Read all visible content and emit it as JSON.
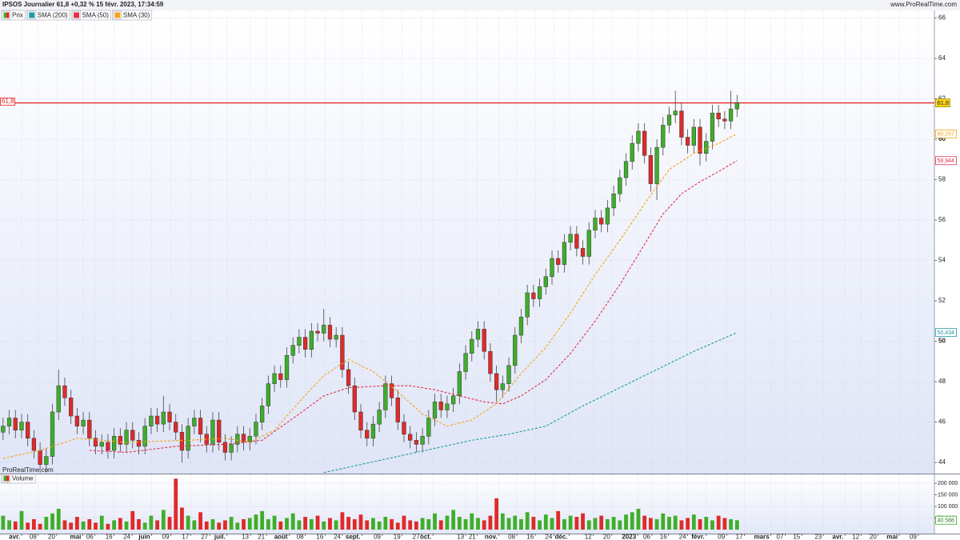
{
  "chart_data": {
    "type": "candlestick",
    "title": "IPSOS Journalier 61,8 +0,32 % 15 févr. 2023, 17:34:59",
    "source": "www.ProRealTime.com",
    "watermark": "ProRealTime.com",
    "price_legend": "Prix",
    "up_color": "#3fae2a",
    "down_color": "#e02a2a",
    "xlim": [
      -0.5,
      151
    ],
    "xticks": [
      {
        "value": 3.0,
        "label": "avr."
      },
      {
        "value": 5.7,
        "label": "08"
      },
      {
        "value": 8.7,
        "label": "20"
      },
      {
        "value": 12.9,
        "label": "mai"
      },
      {
        "value": 14.9,
        "label": "06"
      },
      {
        "value": 18.0,
        "label": "16"
      },
      {
        "value": 20.9,
        "label": "24"
      },
      {
        "value": 24.1,
        "label": "juin"
      },
      {
        "value": 27.2,
        "label": "09"
      },
      {
        "value": 30.4,
        "label": "17"
      },
      {
        "value": 33.5,
        "label": "27"
      },
      {
        "value": 36.3,
        "label": "juil."
      },
      {
        "value": 40.1,
        "label": "13"
      },
      {
        "value": 42.7,
        "label": "21"
      },
      {
        "value": 46.4,
        "label": "août"
      },
      {
        "value": 49.0,
        "label": "08"
      },
      {
        "value": 52.2,
        "label": "16"
      },
      {
        "value": 55.0,
        "label": "24"
      },
      {
        "value": 58.2,
        "label": "sept."
      },
      {
        "value": 61.5,
        "label": "09"
      },
      {
        "value": 64.7,
        "label": "19"
      },
      {
        "value": 67.8,
        "label": "27"
      },
      {
        "value": 69.7,
        "label": "oct."
      },
      {
        "value": 75.0,
        "label": "13"
      },
      {
        "value": 76.9,
        "label": "21"
      },
      {
        "value": 80.4,
        "label": "nov."
      },
      {
        "value": 83.3,
        "label": "08"
      },
      {
        "value": 86.3,
        "label": "16"
      },
      {
        "value": 89.3,
        "label": "24"
      },
      {
        "value": 91.8,
        "label": "déc."
      },
      {
        "value": 95.7,
        "label": "12"
      },
      {
        "value": 98.7,
        "label": "20"
      },
      {
        "value": 102.9,
        "label": "2023"
      },
      {
        "value": 105.2,
        "label": "06"
      },
      {
        "value": 107.9,
        "label": "16"
      },
      {
        "value": 111.0,
        "label": "24"
      },
      {
        "value": 114.0,
        "label": "févr."
      },
      {
        "value": 117.3,
        "label": "09"
      },
      {
        "value": 120.2,
        "label": "17"
      },
      {
        "value": 124.5,
        "label": "mars"
      },
      {
        "value": 126.8,
        "label": "07"
      },
      {
        "value": 129.5,
        "label": "15"
      },
      {
        "value": 133.0,
        "label": "23"
      },
      {
        "value": 136.5,
        "label": "avr."
      },
      {
        "value": 139.1,
        "label": "12"
      },
      {
        "value": 141.9,
        "label": "20"
      },
      {
        "value": 145.3,
        "label": "mai"
      },
      {
        "value": 148.4,
        "label": "09"
      }
    ],
    "ylim": [
      43.45,
      66.3
    ],
    "yticks": [
      44,
      46,
      48,
      50,
      52,
      54,
      56,
      58,
      60,
      62,
      64,
      66
    ],
    "open": [
      45.5,
      45.8,
      46.2,
      45.6,
      46.0,
      45.2,
      44.6,
      43.9,
      44.3,
      46.5,
      47.8,
      47.2,
      46.3,
      45.8,
      46.1,
      45.2,
      44.8,
      45.0,
      44.6,
      45.3,
      44.9,
      45.6,
      45.1,
      44.8,
      45.8,
      46.3,
      45.9,
      46.5,
      46.0,
      45.5,
      44.6,
      45.8,
      46.2,
      45.4,
      44.9,
      46.1,
      45.0,
      44.5,
      44.9,
      45.4,
      45.0,
      45.3,
      46.0,
      46.8,
      47.9,
      48.4,
      48.1,
      49.3,
      49.8,
      50.2,
      49.6,
      50.5,
      50.4,
      50.8,
      50.1,
      50.3,
      48.6,
      47.8,
      46.5,
      45.6,
      45.2,
      45.9,
      46.6,
      47.9,
      47.2,
      46.0,
      45.4,
      45.1,
      44.9,
      45.3,
      46.2,
      47.0,
      46.6,
      46.9,
      47.3,
      48.5,
      49.4,
      50.1,
      50.6,
      49.5,
      48.4,
      47.6,
      47.9,
      48.8,
      50.3,
      51.2,
      52.4,
      52.1,
      52.7,
      53.2,
      54.1,
      53.8,
      54.9,
      55.3,
      54.6,
      54.2,
      55.5,
      56.1,
      55.8,
      56.6,
      57.3,
      58.1,
      58.9,
      59.8,
      60.4,
      59.2,
      57.8,
      59.6,
      60.7,
      61.2,
      61.4,
      60.1,
      59.7,
      60.6,
      59.3,
      59.9,
      61.3,
      61.0,
      60.9,
      61.5
    ],
    "high": [
      46.2,
      46.6,
      46.6,
      46.4,
      46.4,
      45.6,
      45.0,
      44.7,
      46.9,
      48.6,
      48.2,
      47.6,
      46.7,
      46.5,
      46.5,
      45.6,
      45.4,
      45.4,
      45.7,
      45.7,
      46.0,
      46.0,
      45.5,
      46.2,
      46.7,
      46.7,
      47.3,
      46.9,
      46.4,
      45.9,
      46.2,
      46.6,
      46.6,
      45.8,
      46.5,
      46.5,
      45.4,
      45.3,
      45.8,
      45.8,
      45.7,
      46.4,
      47.2,
      48.3,
      48.8,
      48.8,
      49.7,
      50.2,
      50.6,
      50.6,
      50.9,
      50.9,
      51.6,
      51.2,
      50.7,
      50.7,
      49.0,
      48.2,
      46.9,
      46.0,
      46.3,
      47.0,
      48.3,
      48.3,
      47.6,
      46.4,
      45.8,
      45.5,
      45.7,
      46.6,
      47.4,
      47.4,
      47.3,
      47.7,
      48.9,
      49.8,
      50.5,
      51.0,
      51.0,
      49.9,
      48.8,
      48.3,
      49.2,
      50.7,
      51.6,
      52.8,
      52.8,
      53.1,
      53.6,
      54.5,
      54.5,
      55.3,
      55.7,
      55.7,
      55.0,
      55.9,
      56.5,
      56.5,
      57.0,
      57.7,
      58.5,
      59.3,
      60.2,
      60.8,
      60.8,
      59.6,
      60.0,
      61.1,
      61.6,
      62.4,
      61.8,
      60.5,
      61.0,
      61.0,
      60.3,
      61.7,
      61.7,
      61.4,
      62.4,
      62.2
    ],
    "low": [
      45.1,
      45.4,
      45.2,
      45.2,
      44.8,
      44.2,
      43.5,
      43.5,
      43.9,
      46.1,
      46.8,
      45.9,
      45.4,
      45.4,
      44.8,
      44.4,
      44.4,
      44.2,
      44.2,
      44.5,
      44.5,
      44.7,
      44.4,
      44.4,
      45.4,
      45.5,
      45.5,
      45.6,
      45.1,
      44.0,
      44.2,
      45.4,
      45.0,
      44.5,
      44.5,
      44.6,
      44.1,
      44.1,
      44.5,
      44.6,
      44.6,
      44.9,
      45.6,
      46.4,
      47.5,
      47.7,
      47.7,
      48.9,
      49.4,
      49.2,
      49.2,
      50.0,
      50.0,
      49.7,
      49.7,
      48.2,
      47.4,
      46.1,
      45.2,
      44.8,
      44.8,
      45.5,
      46.2,
      46.8,
      45.6,
      45.0,
      44.7,
      44.5,
      44.5,
      44.9,
      45.8,
      46.2,
      46.2,
      46.5,
      46.9,
      48.1,
      49.0,
      49.7,
      49.1,
      48.0,
      47.0,
      47.2,
      47.5,
      48.4,
      49.9,
      50.8,
      51.7,
      51.7,
      52.3,
      52.8,
      53.4,
      53.4,
      54.5,
      54.2,
      53.8,
      53.8,
      55.1,
      55.4,
      55.4,
      56.2,
      56.9,
      57.7,
      58.5,
      59.4,
      58.8,
      57.4,
      57.0,
      59.2,
      60.3,
      60.8,
      59.7,
      59.3,
      59.3,
      58.7,
      58.9,
      59.5,
      60.6,
      60.5,
      60.5,
      61.1
    ],
    "close": [
      45.8,
      46.2,
      45.6,
      46.0,
      45.2,
      44.6,
      43.9,
      44.3,
      46.5,
      47.8,
      47.2,
      46.3,
      45.8,
      46.1,
      45.2,
      44.8,
      45.0,
      44.6,
      45.3,
      44.9,
      45.6,
      45.1,
      44.8,
      45.8,
      46.3,
      45.9,
      46.5,
      46.0,
      45.5,
      44.6,
      45.8,
      46.2,
      45.4,
      44.9,
      46.1,
      45.0,
      44.5,
      44.9,
      45.4,
      45.0,
      45.3,
      46.0,
      46.8,
      47.9,
      48.4,
      48.1,
      49.3,
      49.8,
      50.2,
      49.6,
      50.5,
      50.4,
      50.8,
      50.1,
      50.3,
      48.6,
      47.8,
      46.5,
      45.6,
      45.2,
      45.9,
      46.6,
      47.9,
      47.2,
      46.0,
      45.4,
      45.1,
      44.9,
      45.3,
      46.2,
      47.0,
      46.6,
      46.9,
      47.3,
      48.5,
      49.4,
      50.1,
      50.6,
      49.5,
      48.4,
      47.6,
      47.9,
      48.8,
      50.3,
      51.2,
      52.4,
      52.1,
      52.7,
      53.2,
      54.1,
      53.8,
      54.9,
      55.3,
      54.6,
      54.2,
      55.5,
      56.1,
      55.8,
      56.6,
      57.3,
      58.1,
      58.9,
      59.8,
      60.4,
      59.2,
      57.8,
      59.6,
      60.7,
      61.2,
      61.4,
      60.1,
      59.7,
      60.6,
      59.3,
      59.9,
      61.3,
      61.0,
      60.9,
      61.5,
      61.8
    ],
    "last_label": "61,8",
    "last_label_color": "#f7d417",
    "hline": {
      "value": 61.8,
      "label": "61,8",
      "color": "#e41b1b"
    },
    "sma": [
      {
        "name": "SMA (200)",
        "color": "#1d9aa3",
        "last_label": "50,434",
        "x": [
          52,
          58,
          64,
          70,
          76,
          82,
          88,
          94,
          100,
          106,
          112,
          119
        ],
        "values": [
          43.5,
          43.9,
          44.3,
          44.7,
          45.1,
          45.4,
          45.8,
          46.8,
          47.7,
          48.6,
          49.5,
          50.434
        ]
      },
      {
        "name": "SMA (50)",
        "color": "#e0304a",
        "last_label": "58,944",
        "x": [
          14,
          20,
          28,
          36,
          42,
          48,
          52,
          56,
          62,
          66,
          70,
          74,
          78,
          81,
          84,
          88,
          92,
          96,
          100,
          104,
          107,
          110,
          113,
          116,
          119
        ],
        "values": [
          44.6,
          44.5,
          44.8,
          44.9,
          45.1,
          46.4,
          47.3,
          47.7,
          47.8,
          47.8,
          47.6,
          47.3,
          47.0,
          46.9,
          47.3,
          48.1,
          49.4,
          51.0,
          52.8,
          54.8,
          56.3,
          57.3,
          57.9,
          58.4,
          58.944
        ]
      },
      {
        "name": "SMA (30)",
        "color": "#f5a316",
        "last_label": "60,267",
        "x": [
          0,
          6,
          12,
          20,
          30,
          36,
          40,
          44,
          48,
          52,
          56,
          60,
          64,
          68,
          72,
          76,
          80,
          84,
          88,
          92,
          96,
          100,
          104,
          108,
          112,
          116,
          119
        ],
        "values": [
          44.2,
          44.6,
          45.2,
          45.0,
          45.1,
          45.2,
          45.0,
          45.6,
          47.0,
          48.3,
          49.1,
          48.5,
          47.5,
          46.4,
          45.8,
          46.1,
          46.9,
          48.4,
          49.7,
          51.4,
          53.3,
          55.0,
          56.8,
          58.5,
          59.3,
          59.8,
          60.267
        ]
      }
    ],
    "volume": {
      "name": "Volume",
      "last_label": "40 588",
      "ylim": [
        0,
        228000
      ],
      "yticks": [
        {
          "value": 50000,
          "label": "50 000"
        },
        {
          "value": 100000,
          "label": "100 000"
        },
        {
          "value": 150000,
          "label": "150 000"
        },
        {
          "value": 200000,
          "label": "200 000"
        }
      ],
      "values": [
        60000,
        40000,
        35000,
        80000,
        30000,
        45000,
        25000,
        55000,
        70000,
        90000,
        40000,
        30000,
        55000,
        35000,
        45000,
        30000,
        60000,
        25000,
        40000,
        50000,
        35000,
        80000,
        45000,
        30000,
        60000,
        40000,
        85000,
        55000,
        220000,
        95000,
        60000,
        40000,
        75000,
        35000,
        45000,
        30000,
        40000,
        55000,
        30000,
        45000,
        50000,
        65000,
        80000,
        45000,
        60000,
        35000,
        50000,
        70000,
        40000,
        55000,
        45000,
        60000,
        35000,
        50000,
        40000,
        75000,
        55000,
        45000,
        65000,
        40000,
        50000,
        35000,
        55000,
        45000,
        30000,
        60000,
        40000,
        35000,
        50000,
        45000,
        70000,
        40000,
        60000,
        85000,
        55000,
        45000,
        70000,
        50000,
        40000,
        60000,
        135000,
        70000,
        50000,
        60000,
        45000,
        75000,
        55000,
        40000,
        65000,
        50000,
        80000,
        45000,
        60000,
        55000,
        70000,
        40000,
        50000,
        60000,
        45000,
        55000,
        40000,
        65000,
        75000,
        90000,
        60000,
        50000,
        45000,
        70000,
        55000,
        60000,
        40000,
        50000,
        65000,
        45000,
        55000,
        40000,
        60000,
        50000,
        45000,
        40588
      ]
    }
  }
}
